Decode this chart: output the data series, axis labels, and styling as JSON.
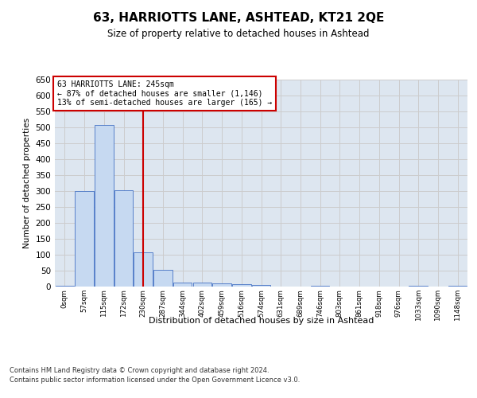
{
  "title": "63, HARRIOTTS LANE, ASHTEAD, KT21 2QE",
  "subtitle": "Size of property relative to detached houses in Ashtead",
  "xlabel": "Distribution of detached houses by size in Ashtead",
  "ylabel": "Number of detached properties",
  "annotation_line1": "63 HARRIOTTS LANE: 245sqm",
  "annotation_line2": "← 87% of detached houses are smaller (1,146)",
  "annotation_line3": "13% of semi-detached houses are larger (165) →",
  "footnote1": "Contains HM Land Registry data © Crown copyright and database right 2024.",
  "footnote2": "Contains public sector information licensed under the Open Government Licence v3.0.",
  "bin_labels": [
    "0sqm",
    "57sqm",
    "115sqm",
    "172sqm",
    "230sqm",
    "287sqm",
    "344sqm",
    "402sqm",
    "459sqm",
    "516sqm",
    "574sqm",
    "631sqm",
    "689sqm",
    "746sqm",
    "803sqm",
    "861sqm",
    "918sqm",
    "976sqm",
    "1033sqm",
    "1090sqm",
    "1148sqm"
  ],
  "bar_values": [
    2,
    300,
    507,
    302,
    107,
    53,
    13,
    13,
    11,
    8,
    5,
    0,
    0,
    2,
    0,
    0,
    0,
    0,
    2,
    0,
    2
  ],
  "bar_color": "#c6d9f1",
  "bar_edge_color": "#4472c4",
  "vline_x": 4.0,
  "vline_color": "#cc0000",
  "ylim": [
    0,
    650
  ],
  "yticks": [
    0,
    50,
    100,
    150,
    200,
    250,
    300,
    350,
    400,
    450,
    500,
    550,
    600,
    650
  ],
  "annotation_box_color": "#cc0000",
  "grid_color": "#cccccc",
  "background_color": "#dde6f0",
  "fig_background": "#ffffff"
}
